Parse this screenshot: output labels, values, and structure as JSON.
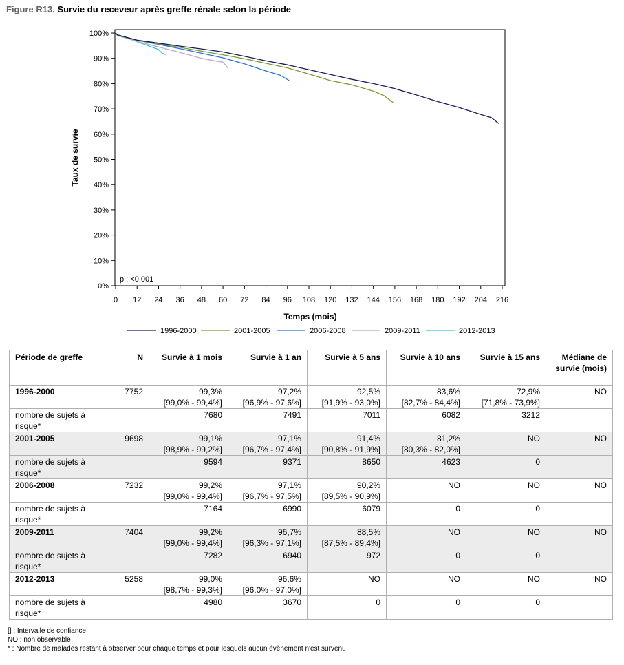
{
  "figure": {
    "label": "Figure R13.",
    "title": "Survie du receveur après greffe rénale selon la période"
  },
  "chart_data": {
    "type": "line",
    "xlabel": "Temps (mois)",
    "ylabel": "Taux de survie",
    "xlim": [
      0,
      216
    ],
    "ylim": [
      0,
      100
    ],
    "xticks": [
      0,
      12,
      24,
      36,
      48,
      60,
      72,
      84,
      96,
      108,
      120,
      132,
      144,
      156,
      168,
      180,
      192,
      204,
      216
    ],
    "yticks": [
      "0%",
      "10%",
      "20%",
      "30%",
      "40%",
      "50%",
      "60%",
      "70%",
      "80%",
      "90%",
      "100%"
    ],
    "annotation": "p : <0,001",
    "legend_position": "bottom",
    "series": [
      {
        "name": "1996-2000",
        "color": "#1a1a5e",
        "x": [
          0,
          1,
          12,
          24,
          36,
          48,
          60,
          72,
          84,
          96,
          108,
          120,
          132,
          144,
          156,
          168,
          180,
          192,
          204,
          210,
          214
        ],
        "y": [
          100,
          99.3,
          97.2,
          96.0,
          94.8,
          93.7,
          92.5,
          90.8,
          89.0,
          87.4,
          85.5,
          83.6,
          81.7,
          80.0,
          78.0,
          75.5,
          72.9,
          70.5,
          67.8,
          66.5,
          64.2
        ]
      },
      {
        "name": "2001-2005",
        "color": "#7a9a30",
        "x": [
          0,
          1,
          12,
          24,
          36,
          48,
          60,
          72,
          84,
          96,
          108,
          120,
          132,
          144,
          150,
          155
        ],
        "y": [
          100,
          99.1,
          97.1,
          95.7,
          94.3,
          92.8,
          91.4,
          89.8,
          88.0,
          86.2,
          83.8,
          81.2,
          79.5,
          77.0,
          75.2,
          72.5
        ]
      },
      {
        "name": "2006-2008",
        "color": "#2a74c8",
        "x": [
          0,
          1,
          12,
          24,
          36,
          48,
          60,
          72,
          84,
          92,
          97
        ],
        "y": [
          100,
          99.2,
          97.1,
          95.5,
          93.8,
          92.0,
          90.2,
          87.8,
          85.0,
          83.3,
          81.2
        ]
      },
      {
        "name": "2009-2011",
        "color": "#b8a8d8",
        "x": [
          0,
          1,
          12,
          24,
          36,
          48,
          56,
          60,
          63
        ],
        "y": [
          100,
          99.2,
          96.7,
          94.5,
          92.3,
          90.0,
          88.9,
          88.5,
          86.0
        ]
      },
      {
        "name": "2012-2013",
        "color": "#30c8e0",
        "x": [
          0,
          1,
          6,
          12,
          18,
          24,
          26,
          28
        ],
        "y": [
          100,
          99.0,
          98.0,
          96.6,
          95.0,
          93.5,
          92.0,
          91.5
        ]
      }
    ]
  },
  "table": {
    "headers": [
      "Période de greffe",
      "N",
      "Survie à 1 mois",
      "Survie à 1 an",
      "Survie à 5 ans",
      "Survie à 10 ans",
      "Survie à 15 ans",
      "Médiane de survie (mois)"
    ],
    "rows": [
      {
        "period": "1996-2000",
        "n": "7752",
        "s1m": "99,3%",
        "s1m_ci": "[99,0% - 99,4%]",
        "s1a": "97,2%",
        "s1a_ci": "[96,9% - 97,6%]",
        "s5a": "92,5%",
        "s5a_ci": "[91,9% - 93,0%]",
        "s10a": "83,6%",
        "s10a_ci": "[82,7% - 84,4%]",
        "s15a": "72,9%",
        "s15a_ci": "[71,8% - 73,9%]",
        "med": "NO",
        "risk_label": "nombre de sujets à risque*",
        "risk": [
          "7680",
          "7491",
          "7011",
          "6082",
          "3212"
        ]
      },
      {
        "period": "2001-2005",
        "n": "9698",
        "s1m": "99,1%",
        "s1m_ci": "[98,9% - 99,2%]",
        "s1a": "97,1%",
        "s1a_ci": "[96,7% - 97,4%]",
        "s5a": "91,4%",
        "s5a_ci": "[90,8% - 91,9%]",
        "s10a": "81,2%",
        "s10a_ci": "[80,3% - 82,0%]",
        "s15a": "NO",
        "s15a_ci": "",
        "med": "NO",
        "risk_label": "nombre de sujets à risque*",
        "risk": [
          "9594",
          "9371",
          "8650",
          "4623",
          "0"
        ]
      },
      {
        "period": "2006-2008",
        "n": "7232",
        "s1m": "99,2%",
        "s1m_ci": "[99,0% - 99,4%]",
        "s1a": "97,1%",
        "s1a_ci": "[96,7% - 97,5%]",
        "s5a": "90,2%",
        "s5a_ci": "[89,5% - 90,9%]",
        "s10a": "NO",
        "s10a_ci": "",
        "s15a": "NO",
        "s15a_ci": "",
        "med": "NO",
        "risk_label": "nombre de sujets à risque*",
        "risk": [
          "7164",
          "6990",
          "6079",
          "0",
          "0"
        ]
      },
      {
        "period": "2009-2011",
        "n": "7404",
        "s1m": "99,2%",
        "s1m_ci": "[99,0% - 99,4%]",
        "s1a": "96,7%",
        "s1a_ci": "[96,3% - 97,1%]",
        "s5a": "88,5%",
        "s5a_ci": "[87,5% - 89,4%]",
        "s10a": "NO",
        "s10a_ci": "",
        "s15a": "NO",
        "s15a_ci": "",
        "med": "NO",
        "risk_label": "nombre de sujets à risque*",
        "risk": [
          "7282",
          "6940",
          "972",
          "0",
          "0"
        ]
      },
      {
        "period": "2012-2013",
        "n": "5258",
        "s1m": "99,0%",
        "s1m_ci": "[98,7% - 99,3%]",
        "s1a": "96,6%",
        "s1a_ci": "[96,0% - 97,0%]",
        "s5a": "NO",
        "s5a_ci": "",
        "s10a": "NO",
        "s10a_ci": "",
        "s15a": "NO",
        "s15a_ci": "",
        "med": "NO",
        "risk_label": "nombre de sujets à risque*",
        "risk": [
          "4980",
          "3670",
          "0",
          "0",
          "0"
        ]
      }
    ]
  },
  "notes": [
    "[] : Intervalle de confiance",
    "NO : non observable",
    "* : Nombre de malades restant à observer pour chaque temps et pour lesquels aucun évènement n'est survenu"
  ]
}
